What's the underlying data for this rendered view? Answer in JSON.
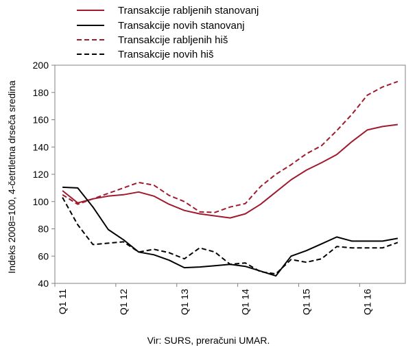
{
  "chart_data": {
    "type": "line",
    "ylabel": "Indeks 2008=100, 4-četrtletna drseča sredina",
    "ylim": [
      40,
      200
    ],
    "yticks": [
      40,
      60,
      80,
      100,
      120,
      140,
      160,
      180,
      200
    ],
    "x_tick_labels": [
      "Q1 11",
      "Q1 12",
      "Q1 13",
      "Q1 14",
      "Q1 15",
      "Q1 16"
    ],
    "x": [
      "Q1 11",
      "Q2 11",
      "Q3 11",
      "Q4 11",
      "Q1 12",
      "Q2 12",
      "Q3 12",
      "Q4 12",
      "Q1 13",
      "Q2 13",
      "Q3 13",
      "Q4 13",
      "Q1 14",
      "Q2 14",
      "Q3 14",
      "Q4 14",
      "Q1 15",
      "Q2 15",
      "Q3 15",
      "Q4 15",
      "Q1 16",
      "Q2 16",
      "Q3 16"
    ],
    "grid": false,
    "legend_position": "top",
    "series": [
      {
        "name": "Transakcije rabljenih stanovanj",
        "color": "#a0192c",
        "dash": "solid",
        "values": [
          108,
          99,
          102,
          104,
          105,
          107,
          104,
          98,
          93.5,
          91,
          89.5,
          88,
          91,
          98,
          107,
          116,
          123,
          128.5,
          134.5,
          144,
          152.5,
          155,
          156.5
        ]
      },
      {
        "name": "Transakcije novih stanovanj",
        "color": "#000000",
        "dash": "solid",
        "values": [
          110.5,
          110,
          96,
          79.5,
          72,
          63,
          61,
          57,
          51.5,
          52,
          53,
          54,
          52.5,
          49,
          45.5,
          60,
          64,
          69,
          74,
          71,
          71,
          71,
          73
        ]
      },
      {
        "name": "Transakcije rabljenih his",
        "color": "#a0192c",
        "dash": "dashed",
        "values": [
          105,
          98,
          102,
          106,
          110,
          114,
          112,
          104.5,
          100,
          92.5,
          92,
          96,
          98.5,
          111,
          120,
          127,
          135,
          141,
          152,
          164,
          178,
          184,
          188
        ]
      },
      {
        "name": "Transakcije novih his",
        "color": "#000000",
        "dash": "dashed",
        "values": [
          103,
          83,
          68.5,
          69.5,
          70.5,
          63,
          65,
          62.5,
          58,
          66,
          63,
          54,
          55,
          48.5,
          47,
          57.5,
          55.5,
          58,
          67,
          66,
          66,
          66,
          70
        ]
      }
    ],
    "source_note": "Vir: SURS, preračuni UMAR."
  },
  "legend_labels": [
    "Transakcije rabljenih stanovanj",
    "Transakcije novih stanovanj",
    "Transakcije rabljenih hiš",
    "Transakcije novih hiš"
  ]
}
